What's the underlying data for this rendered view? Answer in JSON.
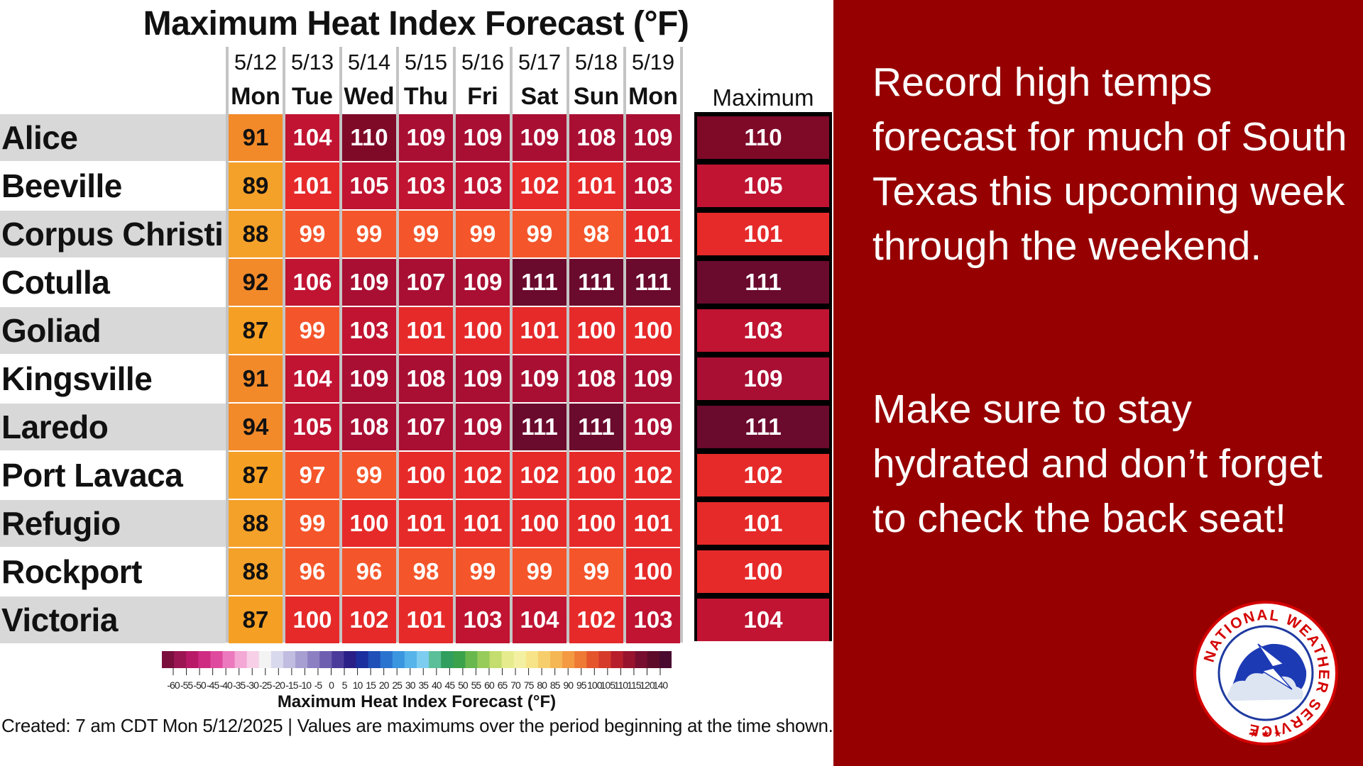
{
  "chart_data": {
    "type": "table",
    "title": "Maximum Heat Index Forecast (°F)",
    "dates": [
      "5/12",
      "5/13",
      "5/14",
      "5/15",
      "5/16",
      "5/17",
      "5/18",
      "5/19"
    ],
    "days": [
      "Mon",
      "Tue",
      "Wed",
      "Thu",
      "Fri",
      "Sat",
      "Sun",
      "Mon"
    ],
    "max_header": "Maximum",
    "rows": [
      {
        "name": "Alice",
        "values": [
          91,
          104,
          110,
          109,
          109,
          109,
          108,
          109
        ],
        "max": 110
      },
      {
        "name": "Beeville",
        "values": [
          89,
          101,
          105,
          103,
          103,
          102,
          101,
          103
        ],
        "max": 105
      },
      {
        "name": "Corpus Christi",
        "values": [
          88,
          99,
          99,
          99,
          99,
          99,
          98,
          101
        ],
        "max": 101
      },
      {
        "name": "Cotulla",
        "values": [
          92,
          106,
          109,
          107,
          109,
          111,
          111,
          111
        ],
        "max": 111
      },
      {
        "name": "Goliad",
        "values": [
          87,
          99,
          103,
          101,
          100,
          101,
          100,
          100
        ],
        "max": 103
      },
      {
        "name": "Kingsville",
        "values": [
          91,
          104,
          109,
          108,
          109,
          109,
          108,
          109
        ],
        "max": 109
      },
      {
        "name": "Laredo",
        "values": [
          94,
          105,
          108,
          107,
          109,
          111,
          111,
          109
        ],
        "max": 111
      },
      {
        "name": "Port Lavaca",
        "values": [
          87,
          97,
          99,
          100,
          102,
          102,
          100,
          102
        ],
        "max": 102
      },
      {
        "name": "Refugio",
        "values": [
          88,
          99,
          100,
          101,
          101,
          100,
          100,
          101
        ],
        "max": 101
      },
      {
        "name": "Rockport",
        "values": [
          88,
          96,
          96,
          98,
          99,
          99,
          99,
          100
        ],
        "max": 100
      },
      {
        "name": "Victoria",
        "values": [
          87,
          100,
          102,
          101,
          103,
          104,
          102,
          103
        ],
        "max": 104
      }
    ],
    "color_scale": {
      "title": "Maximum Heat Index Forecast (°F)",
      "labels": [
        "-60",
        "-55",
        "-50",
        "-45",
        "-40",
        "-35",
        "-30",
        "-25",
        "-20",
        "-15",
        "-10",
        "-5",
        "0",
        "5",
        "10",
        "15",
        "20",
        "25",
        "30",
        "35",
        "40",
        "45",
        "50",
        "55",
        "60",
        "65",
        "70",
        "75",
        "80",
        "85",
        "90",
        "95",
        "100",
        "105",
        "110",
        "115",
        "120",
        "140"
      ],
      "colors": [
        "#7a0f3e",
        "#9c1553",
        "#b81a68",
        "#cf2b83",
        "#e04a9e",
        "#ec79bd",
        "#f4a8d6",
        "#f7cfe7",
        "#f3f3f3",
        "#d9d9ee",
        "#c0bde0",
        "#a79fd1",
        "#8d80c2",
        "#6e5fb0",
        "#4a3b9a",
        "#2a1f86",
        "#1b2f9e",
        "#1f4fb7",
        "#2a74cf",
        "#3b96e0",
        "#56b4ea",
        "#7dcdf0",
        "#5bbf9a",
        "#2f9e5e",
        "#3aa24a",
        "#69b84e",
        "#98cc5a",
        "#c4dd6e",
        "#e6ec8e",
        "#f3f0a2",
        "#f7e488",
        "#f6cf6c",
        "#f5b654",
        "#f39a42",
        "#ee7a35",
        "#e5552c",
        "#d63a2a",
        "#b81f2c",
        "#97132e",
        "#770e2f",
        "#5e0b2a",
        "#4a0a30"
      ]
    }
  },
  "footer": "Created: 7 am CDT Mon 5/12/2025  |  Values are maximums over the period beginning at the time shown.",
  "message": {
    "para1": "Record high temps forecast for much of South Texas this upcoming week through the weekend.",
    "para2": "Make sure to stay hydrated and don’t forget to check the back seat!"
  },
  "logo": {
    "text": "NATIONAL WEATHER SERVICE",
    "icon": "nws-logo-icon"
  }
}
